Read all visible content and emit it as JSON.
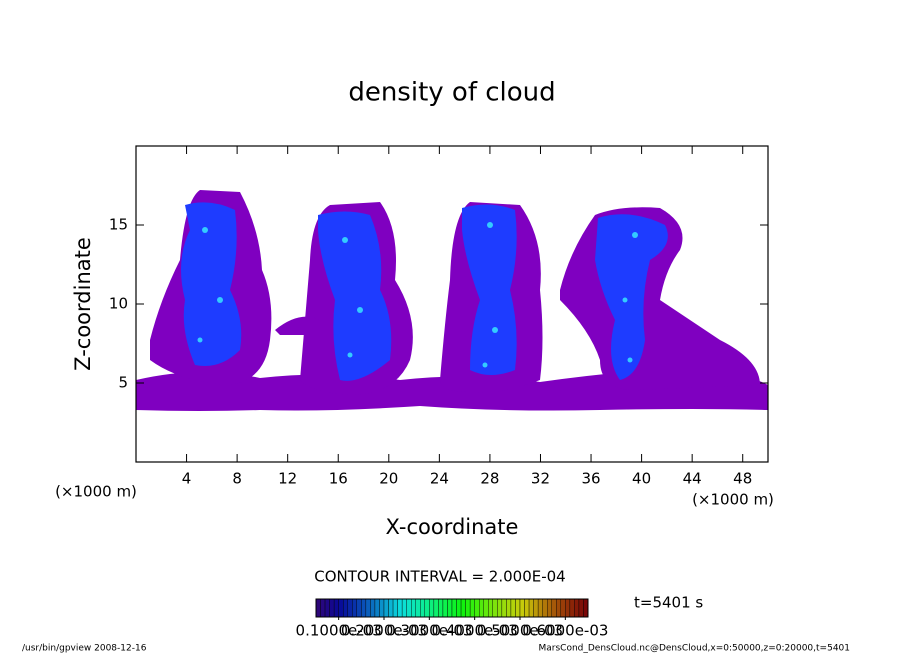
{
  "chart_data": {
    "type": "contour",
    "title": "density of cloud",
    "x_label": "X-coordinate",
    "y_label": "Z-coordinate",
    "x_unit": "(×1000 m)",
    "y_unit": "(×1000 m)",
    "xlim": [
      0,
      50
    ],
    "xticks": [
      4,
      8,
      12,
      16,
      20,
      24,
      28,
      32,
      36,
      40,
      44,
      48
    ],
    "ylim": [
      0,
      20
    ],
    "yticks": [
      5,
      10,
      15
    ],
    "contour_interval": "CONTOUR INTERVAL = 2.000E-04",
    "time_label": "t=5401 s",
    "colorbar_ticks": [
      {
        "value": 0.0001,
        "label": "0.1000e-03"
      },
      {
        "value": 0.0002,
        "label": "0.2000e-03"
      },
      {
        "value": 0.0003,
        "label": "0.3000e-03"
      },
      {
        "value": 0.0004,
        "label": "0.4000e-03"
      },
      {
        "value": 0.0005,
        "label": "0.5000e-03"
      },
      {
        "value": 0.0006,
        "label": "0.6000e-03"
      }
    ],
    "colorbar_lim": [
      5e-05,
      0.00065
    ],
    "footer_left": "/usr/bin/gpview  2008-12-16",
    "footer_right": "MarsCond_DensCloud.nc@DensCloud,x=0:50000,z=0:20000,t=5401"
  }
}
